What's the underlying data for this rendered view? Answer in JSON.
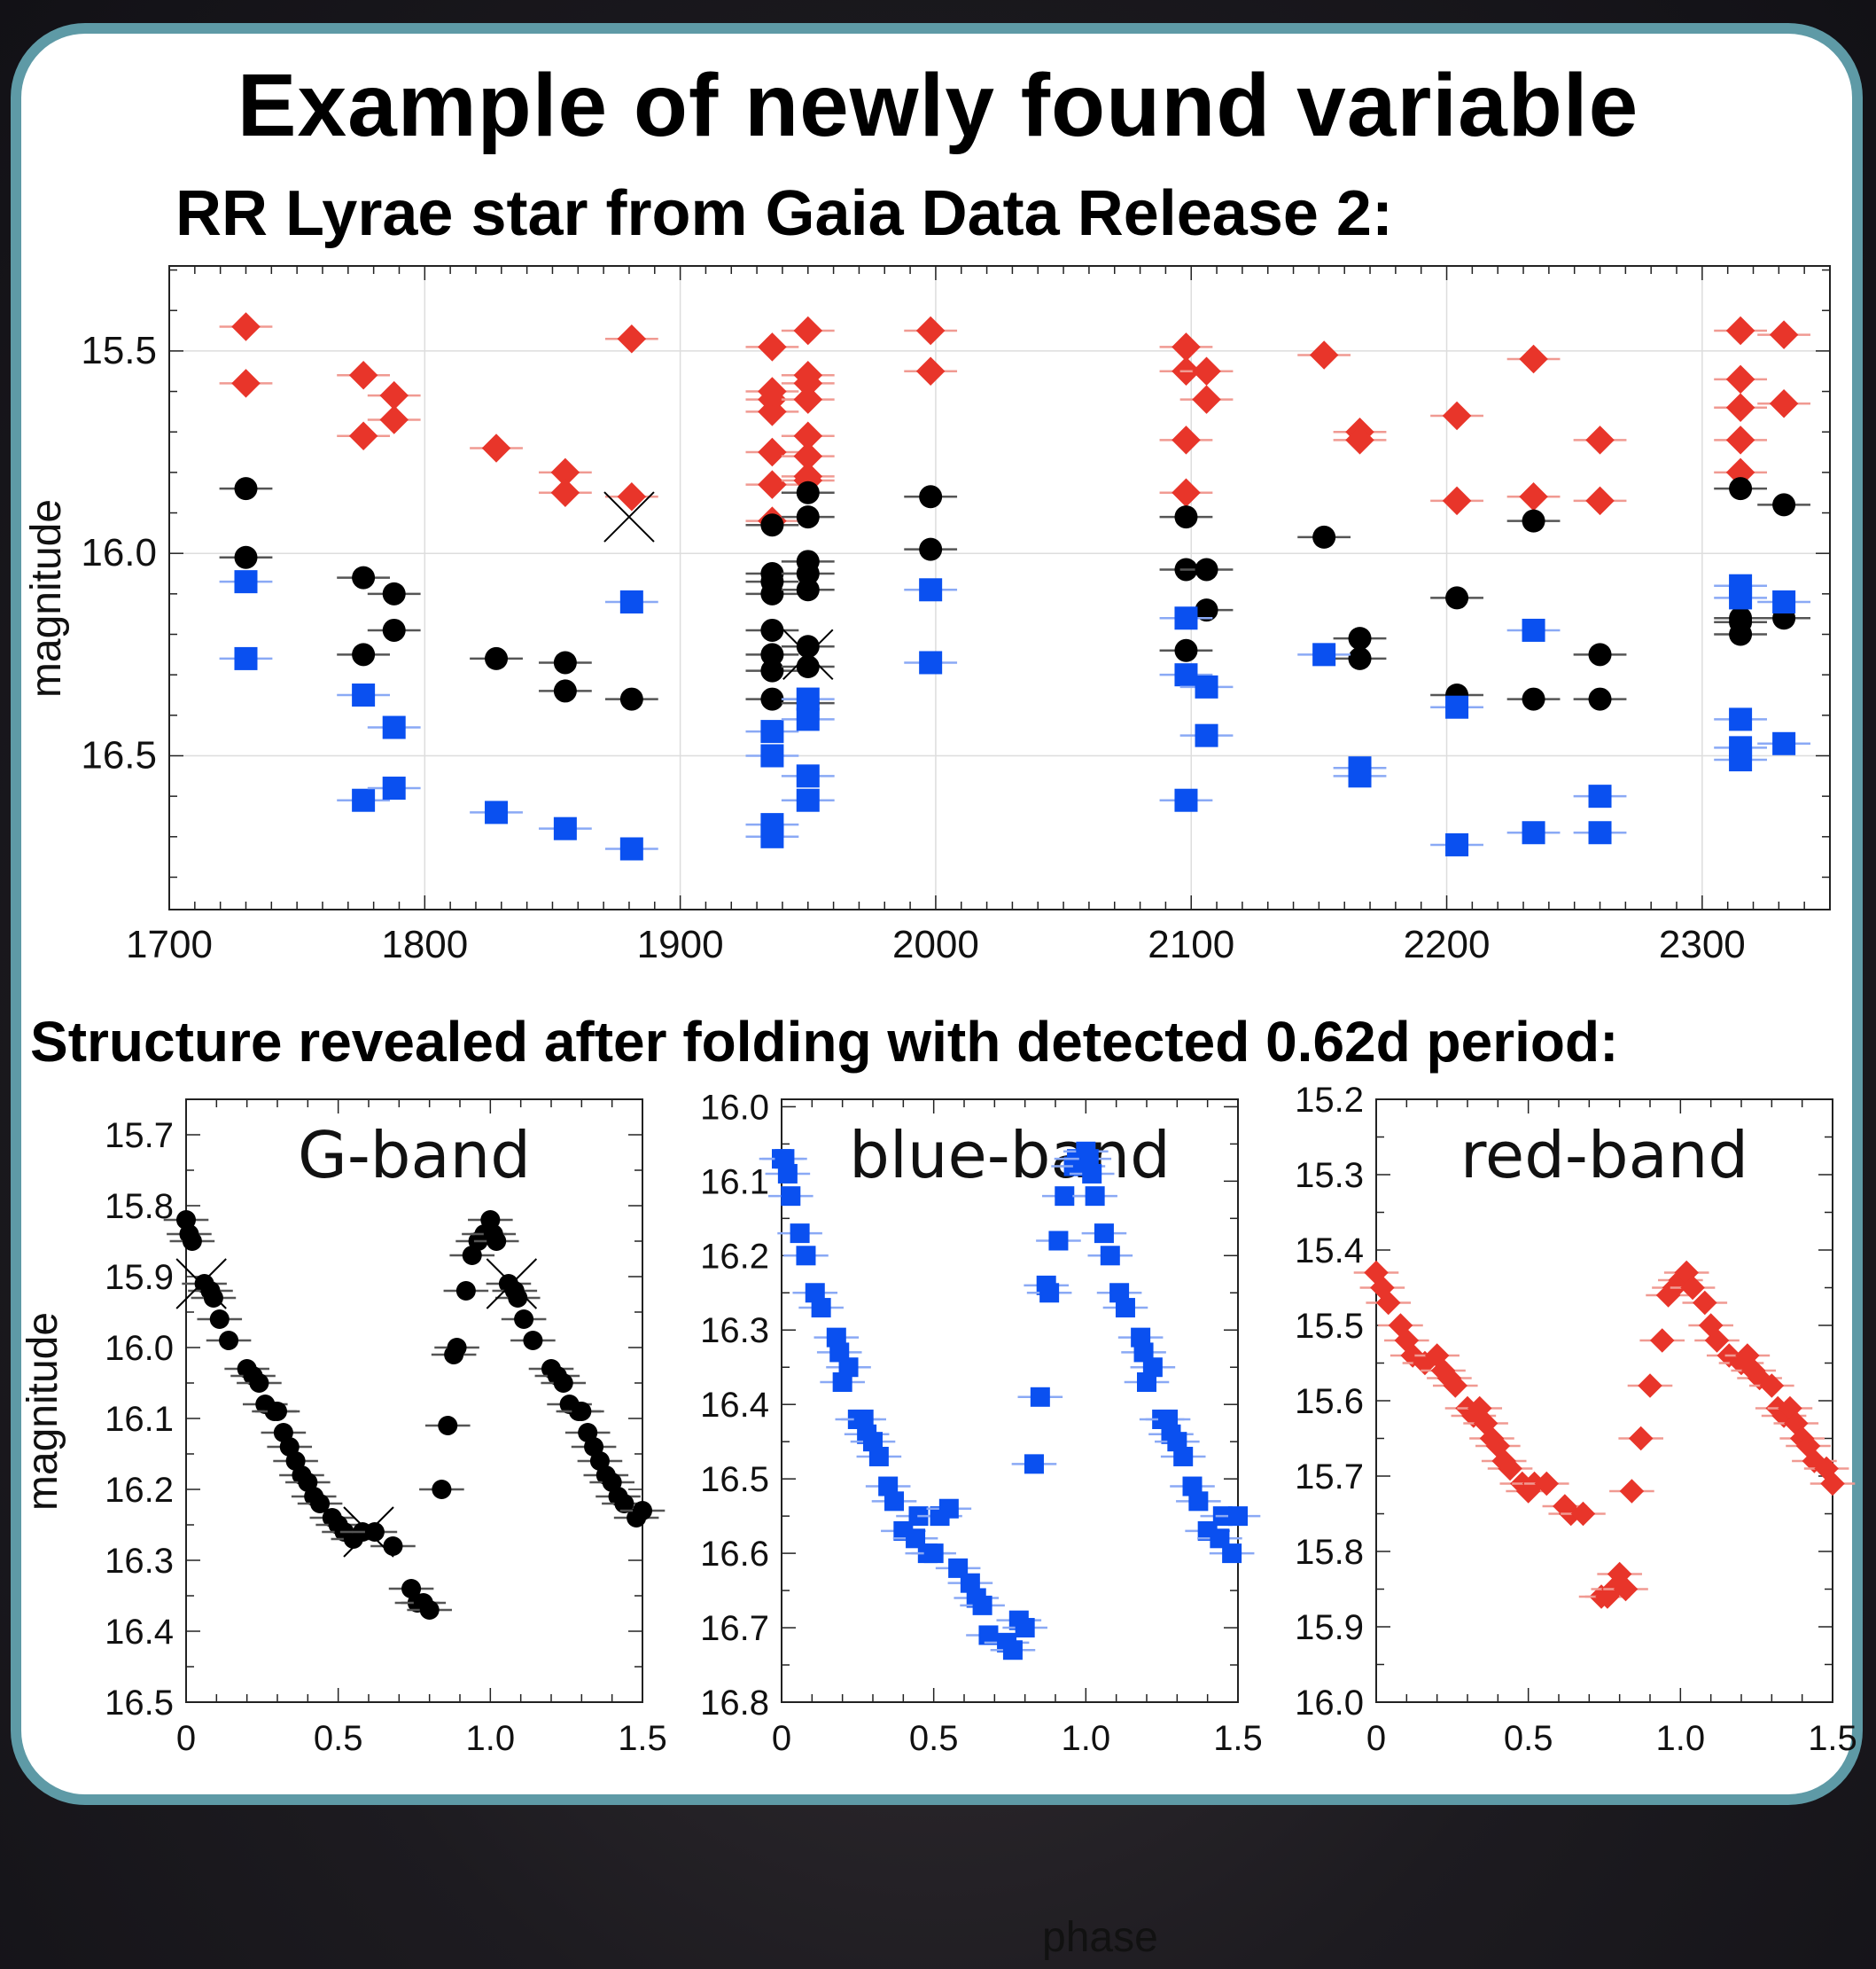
{
  "header": {
    "title": "Example of newly found variable",
    "subtitle": "RR Lyrae star from Gaia Data Release 2:",
    "section2": "Structure revealed after folding with detected 0.62d period:",
    "phase_label": "phase"
  },
  "colors": {
    "g": "#000000",
    "blue": "#0a50f0",
    "red": "#e8352a",
    "frame": "#5e9aa6"
  },
  "chart_data": [
    {
      "type": "scatter",
      "title": "",
      "xlabel": "",
      "ylabel": "magnitude",
      "xlim": [
        1700,
        2350
      ],
      "ylim": [
        16.88,
        15.29
      ],
      "y_inverted": true,
      "grid": true,
      "x_ticks": [
        "1700",
        "1800",
        "1900",
        "2000",
        "2100",
        "2200",
        "2300"
      ],
      "y_ticks": [
        "15.5",
        "16.0",
        "16.5"
      ],
      "series": [
        {
          "color": "red",
          "marker": "diamond",
          "x": [
            1730,
            1730,
            1776,
            1776,
            1788,
            1788,
            1828,
            1855,
            1855,
            1881,
            1881,
            1936,
            1936,
            1936,
            1936,
            1936,
            1936,
            1936,
            1950,
            1950,
            1950,
            1950,
            1950,
            1950,
            1950,
            1950,
            1998,
            1998,
            2098,
            2098,
            2098,
            2098,
            2106,
            2106,
            2152,
            2166,
            2166,
            2204,
            2204,
            2234,
            2234,
            2260,
            2260,
            2315,
            2315,
            2315,
            2315,
            2315,
            2332,
            2332
          ],
          "y": [
            15.44,
            15.58,
            15.56,
            15.71,
            15.61,
            15.67,
            15.74,
            15.8,
            15.85,
            15.47,
            15.86,
            15.49,
            15.62,
            15.65,
            15.75,
            15.83,
            15.92,
            15.6,
            15.45,
            15.56,
            15.58,
            15.62,
            15.71,
            15.76,
            15.81,
            15.82,
            15.45,
            15.55,
            15.49,
            15.55,
            15.72,
            15.85,
            15.55,
            15.62,
            15.51,
            15.7,
            15.72,
            15.66,
            15.87,
            15.52,
            15.86,
            15.72,
            15.87,
            15.45,
            15.57,
            15.64,
            15.72,
            15.8,
            15.46,
            15.63
          ]
        },
        {
          "color": "g",
          "marker": "circle",
          "x": [
            1730,
            1730,
            1776,
            1776,
            1788,
            1788,
            1828,
            1855,
            1855,
            1881,
            1936,
            1936,
            1936,
            1936,
            1936,
            1936,
            1936,
            1936,
            1950,
            1950,
            1950,
            1950,
            1950,
            1950,
            1950,
            1950,
            1998,
            1998,
            2098,
            2098,
            2098,
            2106,
            2106,
            2152,
            2166,
            2166,
            2204,
            2204,
            2234,
            2234,
            2260,
            2260,
            2315,
            2315,
            2315,
            2315,
            2332,
            2332
          ],
          "y": [
            15.84,
            16.01,
            16.06,
            16.25,
            16.1,
            16.19,
            16.26,
            16.27,
            16.34,
            16.36,
            15.93,
            16.05,
            16.1,
            16.19,
            16.25,
            16.29,
            16.36,
            16.07,
            15.85,
            15.91,
            16.02,
            16.05,
            16.09,
            16.23,
            16.28,
            16.37,
            15.86,
            15.99,
            15.91,
            16.04,
            16.24,
            16.04,
            16.14,
            15.96,
            16.21,
            16.26,
            16.11,
            16.35,
            15.92,
            16.36,
            16.25,
            16.36,
            15.84,
            16.17,
            16.2,
            16.16,
            15.88,
            16.16
          ]
        },
        {
          "color": "blue",
          "marker": "square",
          "x": [
            1730,
            1730,
            1776,
            1776,
            1788,
            1788,
            1828,
            1855,
            1881,
            1881,
            1936,
            1936,
            1936,
            1936,
            1950,
            1950,
            1950,
            1950,
            1998,
            1998,
            2098,
            2098,
            2098,
            2106,
            2106,
            2152,
            2166,
            2166,
            2204,
            2204,
            2234,
            2234,
            2260,
            2260,
            2315,
            2315,
            2315,
            2315,
            2315,
            2332,
            2332
          ],
          "y": [
            16.07,
            16.26,
            16.35,
            16.61,
            16.43,
            16.58,
            16.64,
            16.68,
            16.12,
            16.73,
            16.44,
            16.5,
            16.67,
            16.7,
            16.36,
            16.41,
            16.55,
            16.61,
            16.09,
            16.27,
            16.16,
            16.3,
            16.61,
            16.33,
            16.45,
            16.25,
            16.53,
            16.55,
            16.38,
            16.72,
            16.19,
            16.69,
            16.6,
            16.69,
            16.08,
            16.11,
            16.41,
            16.48,
            16.51,
            16.12,
            16.47
          ]
        }
      ],
      "annotations": [
        {
          "marker": "cross",
          "x": 1880,
          "y": 15.91
        },
        {
          "marker": "cross",
          "x": 1950,
          "y": 16.25
        }
      ]
    },
    {
      "type": "scatter",
      "title": "G-band",
      "xlabel": "",
      "ylabel": "magnitude",
      "xlim": [
        0,
        1.5
      ],
      "ylim": [
        16.5,
        15.65
      ],
      "y_inverted": true,
      "x_ticks": [
        "0",
        "0.5",
        "1.0",
        "1.5"
      ],
      "y_ticks": [
        "15.7",
        "15.8",
        "15.9",
        "16.0",
        "16.1",
        "16.2",
        "16.3",
        "16.4",
        "16.5"
      ],
      "series": [
        {
          "color": "g",
          "marker": "circle",
          "x": [
            0.0,
            0.01,
            0.02,
            0.06,
            0.08,
            0.09,
            0.11,
            0.14,
            0.2,
            0.22,
            0.24,
            0.26,
            0.29,
            0.3,
            0.32,
            0.34,
            0.36,
            0.38,
            0.4,
            0.42,
            0.44,
            0.48,
            0.5,
            0.52,
            0.55,
            0.58,
            0.62,
            0.68,
            0.74,
            0.76,
            0.78,
            0.8,
            0.84,
            0.86,
            0.88,
            0.89,
            0.92,
            0.94,
            0.96,
            0.98,
            1.0,
            1.01,
            1.02,
            1.06,
            1.08,
            1.09,
            1.11,
            1.14,
            1.2,
            1.22,
            1.24,
            1.26,
            1.29,
            1.3,
            1.32,
            1.34,
            1.36,
            1.38,
            1.4,
            1.42,
            1.44,
            1.48,
            1.5
          ],
          "y": [
            15.82,
            15.84,
            15.85,
            15.91,
            15.92,
            15.93,
            15.96,
            15.99,
            16.03,
            16.04,
            16.05,
            16.08,
            16.09,
            16.09,
            16.12,
            16.14,
            16.16,
            16.18,
            16.19,
            16.21,
            16.22,
            16.24,
            16.25,
            16.26,
            16.27,
            16.26,
            16.26,
            16.28,
            16.34,
            16.36,
            16.36,
            16.37,
            16.2,
            16.11,
            16.01,
            16.0,
            15.92,
            15.87,
            15.85,
            15.84,
            15.82,
            15.84,
            15.85,
            15.91,
            15.92,
            15.93,
            15.96,
            15.99,
            16.03,
            16.04,
            16.05,
            16.08,
            16.09,
            16.09,
            16.12,
            16.14,
            16.16,
            16.18,
            16.19,
            16.21,
            16.22,
            16.24,
            16.23
          ]
        }
      ],
      "annotations": [
        {
          "marker": "cross",
          "x": 0.05,
          "y": 15.91
        },
        {
          "marker": "cross",
          "x": 0.6,
          "y": 16.26
        },
        {
          "marker": "cross",
          "x": 1.07,
          "y": 15.91
        }
      ]
    },
    {
      "type": "scatter",
      "title": "blue-band",
      "xlabel": "",
      "ylabel": "",
      "xlim": [
        0,
        1.5
      ],
      "ylim": [
        16.8,
        15.99
      ],
      "y_inverted": true,
      "x_ticks": [
        "0",
        "0.5",
        "1.0",
        "1.5"
      ],
      "y_ticks": [
        "16.0",
        "16.1",
        "16.2",
        "16.3",
        "16.4",
        "16.5",
        "16.6",
        "16.7",
        "16.8"
      ],
      "series": [
        {
          "color": "blue",
          "marker": "square",
          "x": [
            0.0,
            0.01,
            0.02,
            0.03,
            0.06,
            0.08,
            0.11,
            0.13,
            0.18,
            0.19,
            0.2,
            0.22,
            0.25,
            0.27,
            0.28,
            0.3,
            0.32,
            0.35,
            0.37,
            0.4,
            0.44,
            0.45,
            0.48,
            0.5,
            0.52,
            0.55,
            0.58,
            0.62,
            0.64,
            0.66,
            0.68,
            0.74,
            0.76,
            0.78,
            0.8,
            0.83,
            0.85,
            0.87,
            0.88,
            0.91,
            0.93,
            0.96,
            0.97,
            0.99,
            1.0,
            1.01,
            1.02,
            1.03,
            1.06,
            1.08,
            1.11,
            1.13,
            1.18,
            1.19,
            1.2,
            1.22,
            1.25,
            1.27,
            1.28,
            1.3,
            1.32,
            1.35,
            1.37,
            1.4,
            1.44,
            1.45,
            1.48,
            1.5
          ],
          "y": [
            16.07,
            16.07,
            16.09,
            16.12,
            16.17,
            16.2,
            16.25,
            16.27,
            16.31,
            16.33,
            16.37,
            16.35,
            16.42,
            16.42,
            16.44,
            16.45,
            16.47,
            16.51,
            16.53,
            16.57,
            16.58,
            16.55,
            16.6,
            16.6,
            16.55,
            16.54,
            16.62,
            16.64,
            16.66,
            16.67,
            16.71,
            16.72,
            16.73,
            16.69,
            16.7,
            16.48,
            16.39,
            16.24,
            16.25,
            16.18,
            16.12,
            16.08,
            16.07,
            16.08,
            16.06,
            16.07,
            16.09,
            16.12,
            16.17,
            16.2,
            16.25,
            16.27,
            16.31,
            16.33,
            16.37,
            16.35,
            16.42,
            16.42,
            16.44,
            16.45,
            16.47,
            16.51,
            16.53,
            16.57,
            16.58,
            16.55,
            16.6,
            16.55
          ]
        }
      ]
    },
    {
      "type": "scatter",
      "title": "red-band",
      "xlabel": "",
      "ylabel": "",
      "xlim": [
        0,
        1.5
      ],
      "ylim": [
        16.0,
        15.2
      ],
      "y_inverted": true,
      "x_ticks": [
        "0",
        "0.5",
        "1.0",
        "1.5"
      ],
      "y_ticks": [
        "15.2",
        "15.3",
        "15.4",
        "15.5",
        "15.6",
        "15.7",
        "15.8",
        "15.9",
        "16.0"
      ],
      "series": [
        {
          "color": "red",
          "marker": "diamond",
          "x": [
            0.0,
            0.02,
            0.04,
            0.08,
            0.1,
            0.12,
            0.16,
            0.2,
            0.22,
            0.24,
            0.26,
            0.3,
            0.32,
            0.34,
            0.36,
            0.38,
            0.4,
            0.42,
            0.44,
            0.48,
            0.5,
            0.52,
            0.56,
            0.62,
            0.64,
            0.68,
            0.74,
            0.76,
            0.78,
            0.8,
            0.82,
            0.84,
            0.87,
            0.9,
            0.94,
            0.96,
            0.98,
            1.0,
            1.02,
            1.04,
            1.08,
            1.1,
            1.12,
            1.16,
            1.2,
            1.22,
            1.24,
            1.26,
            1.3,
            1.32,
            1.34,
            1.36,
            1.38,
            1.4,
            1.42,
            1.44,
            1.48,
            1.5
          ],
          "y": [
            15.43,
            15.45,
            15.47,
            15.5,
            15.52,
            15.54,
            15.55,
            15.54,
            15.56,
            15.57,
            15.58,
            15.61,
            15.62,
            15.61,
            15.63,
            15.65,
            15.66,
            15.68,
            15.69,
            15.71,
            15.72,
            15.71,
            15.71,
            15.74,
            15.75,
            15.75,
            15.86,
            15.86,
            15.85,
            15.83,
            15.85,
            15.72,
            15.65,
            15.58,
            15.52,
            15.46,
            15.45,
            15.44,
            15.43,
            15.45,
            15.47,
            15.5,
            15.52,
            15.54,
            15.55,
            15.54,
            15.56,
            15.57,
            15.58,
            15.61,
            15.62,
            15.61,
            15.63,
            15.65,
            15.66,
            15.68,
            15.69,
            15.71
          ]
        }
      ]
    }
  ]
}
